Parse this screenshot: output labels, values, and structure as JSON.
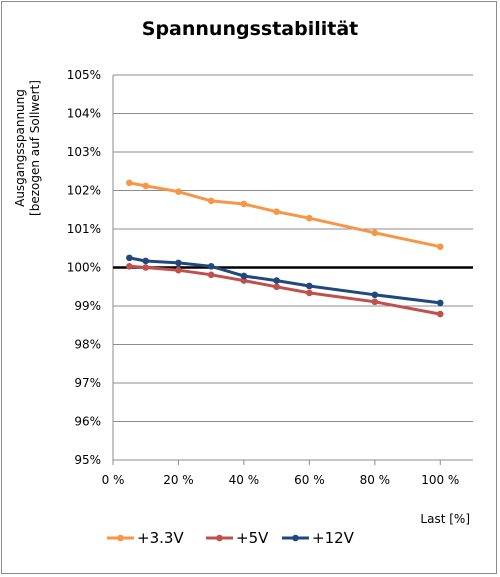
{
  "chart_data": {
    "type": "line",
    "title": "Spannungsstabilität",
    "xlabel": "Last [%]",
    "ylabel_lines": [
      "Ausgangsspannung",
      "[bezogen auf Sollwert]"
    ],
    "xlim": [
      0,
      110
    ],
    "ylim": [
      95,
      105
    ],
    "x_ticks": [
      0,
      20,
      40,
      60,
      80,
      100
    ],
    "x_tick_labels": [
      "0 %",
      "20 %",
      "40 %",
      "60 %",
      "80 %",
      "100 %"
    ],
    "y_ticks": [
      95,
      96,
      97,
      98,
      99,
      100,
      101,
      102,
      103,
      104,
      105
    ],
    "y_tick_labels": [
      "95%",
      "96%",
      "97%",
      "98%",
      "99%",
      "100%",
      "101%",
      "102%",
      "103%",
      "104%",
      "105%"
    ],
    "grid": true,
    "legend_position": "bottom",
    "reference_line": {
      "y": 100,
      "color": "#000000"
    },
    "x": [
      5,
      10,
      20,
      30,
      40,
      50,
      60,
      80,
      100
    ],
    "series": [
      {
        "name": "+3.3V",
        "color": "#f79646",
        "values": [
          102.2,
          102.12,
          101.97,
          101.73,
          101.65,
          101.45,
          101.28,
          100.9,
          100.54
        ]
      },
      {
        "name": "+5V",
        "color": "#c0504d",
        "values": [
          100.03,
          100.0,
          99.93,
          99.81,
          99.66,
          99.5,
          99.34,
          99.11,
          98.79
        ]
      },
      {
        "name": "+12V",
        "color": "#1f497d",
        "values": [
          100.25,
          100.17,
          100.12,
          100.03,
          99.78,
          99.66,
          99.52,
          99.29,
          99.08
        ]
      }
    ]
  }
}
